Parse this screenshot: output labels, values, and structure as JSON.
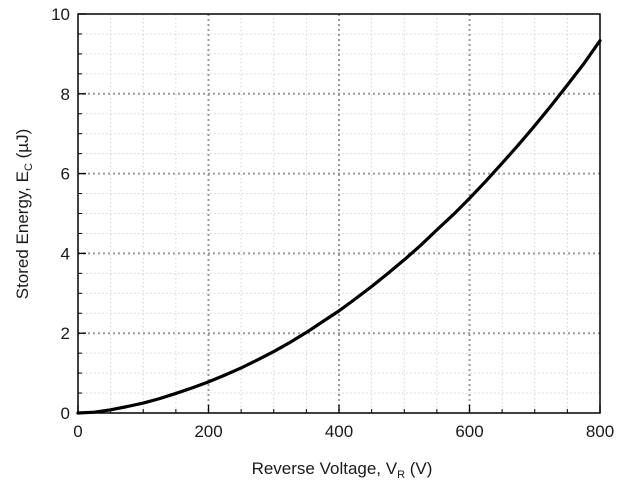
{
  "chart_data": {
    "type": "line",
    "title": "",
    "xlabel": {
      "main": "Reverse Voltage, V",
      "sub": "R",
      "unit": " (V)"
    },
    "ylabel": {
      "main": "Stored Energy, E",
      "sub": "C",
      "unit": " (µJ)"
    },
    "xlim": [
      0,
      800
    ],
    "ylim": [
      0,
      10
    ],
    "x_ticks": [
      0,
      200,
      400,
      600,
      800
    ],
    "y_ticks": [
      0,
      2,
      4,
      6,
      8,
      10
    ],
    "x_minor_step": 50,
    "y_minor_step": 0.5,
    "grid": true,
    "legend": "none",
    "series": [
      {
        "color": "#000000",
        "x": [
          0,
          25,
          50,
          75,
          100,
          125,
          150,
          175,
          200,
          225,
          250,
          275,
          300,
          325,
          350,
          375,
          400,
          425,
          450,
          475,
          500,
          525,
          550,
          575,
          600,
          625,
          650,
          675,
          700,
          725,
          750,
          775,
          800
        ],
        "y": [
          0,
          0.02,
          0.08,
          0.16,
          0.25,
          0.36,
          0.49,
          0.63,
          0.78,
          0.95,
          1.13,
          1.33,
          1.54,
          1.77,
          2.02,
          2.29,
          2.56,
          2.86,
          3.17,
          3.5,
          3.84,
          4.2,
          4.59,
          4.97,
          5.38,
          5.81,
          6.26,
          6.72,
          7.2,
          7.7,
          8.22,
          8.75,
          9.33
        ]
      }
    ]
  }
}
